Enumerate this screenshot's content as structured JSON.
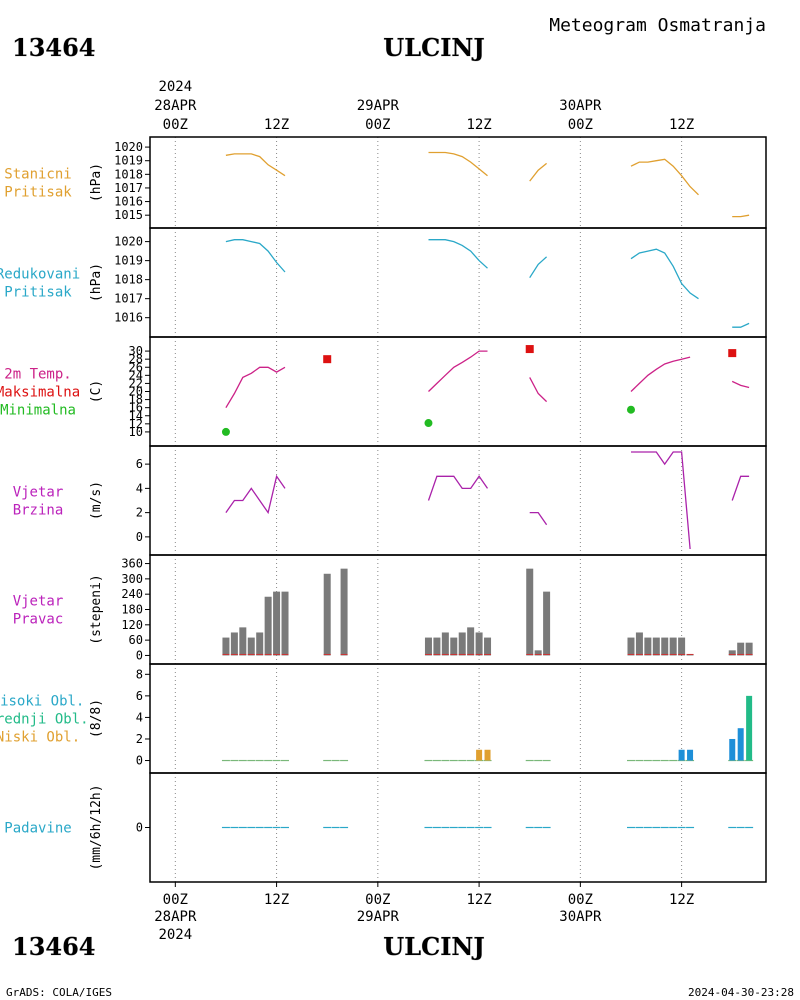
{
  "header": {
    "station_id": "13464",
    "station_name": "ULCINJ",
    "subtitle": "Meteogram Osmatranja",
    "year": "2024"
  },
  "footer": {
    "station_id": "13464",
    "station_name": "ULCINJ",
    "credit": "GrADS: COLA/IGES",
    "timestamp": "2024-04-30-23:28"
  },
  "time_axis": {
    "hour_labels": [
      "00Z",
      "12Z",
      "00Z",
      "12Z",
      "00Z",
      "12Z"
    ],
    "hours": [
      0,
      12,
      24,
      36,
      48,
      60
    ],
    "date_labels": [
      "28APR",
      "29APR",
      "30APR"
    ],
    "date_hours": [
      0,
      24,
      48
    ],
    "year_label": "2024",
    "range_hours": [
      -3,
      70
    ]
  },
  "chart_data": [
    {
      "type": "line",
      "id": "stanicni",
      "panel_labels": [
        "Stanicni",
        "Pritisak"
      ],
      "label_colors": [
        "#e0a030",
        "#e0a030"
      ],
      "ylabel": "(hPa)",
      "ylim": [
        1014.5,
        1020.3
      ],
      "yticks": [
        1015,
        1016,
        1017,
        1018,
        1019,
        1020
      ],
      "series": [
        {
          "color": "#e0a030",
          "segments": [
            [
              [
                6,
                1019.4
              ],
              [
                7,
                1019.5
              ],
              [
                8,
                1019.5
              ],
              [
                9,
                1019.5
              ],
              [
                10,
                1019.3
              ],
              [
                11,
                1018.7
              ],
              [
                12,
                1018.3
              ],
              [
                13,
                1017.9
              ]
            ],
            [
              [
                30,
                1019.6
              ],
              [
                31,
                1019.6
              ],
              [
                32,
                1019.6
              ],
              [
                33,
                1019.5
              ],
              [
                34,
                1019.3
              ],
              [
                35,
                1018.9
              ],
              [
                36,
                1018.4
              ],
              [
                37,
                1017.9
              ]
            ],
            [
              [
                42,
                1017.5
              ],
              [
                43,
                1018.3
              ],
              [
                44,
                1018.8
              ]
            ],
            [
              [
                54,
                1018.6
              ],
              [
                55,
                1018.9
              ],
              [
                56,
                1018.9
              ],
              [
                57,
                1019.0
              ],
              [
                58,
                1019.1
              ],
              [
                59,
                1018.6
              ],
              [
                60,
                1017.9
              ],
              [
                61,
                1017.1
              ],
              [
                62,
                1016.5
              ]
            ],
            [
              [
                66,
                1014.9
              ],
              [
                67,
                1014.9
              ],
              [
                68,
                1015.0
              ]
            ]
          ]
        }
      ]
    },
    {
      "type": "line",
      "id": "redukovani",
      "panel_labels": [
        "Redukovani",
        "Pritisak"
      ],
      "label_colors": [
        "#2aa8c8",
        "#2aa8c8"
      ],
      "ylabel": "(hPa)",
      "ylim": [
        1015.3,
        1020.4
      ],
      "yticks": [
        1016,
        1017,
        1018,
        1019,
        1020
      ],
      "series": [
        {
          "color": "#2aa8c8",
          "segments": [
            [
              [
                6,
                1020.0
              ],
              [
                7,
                1020.1
              ],
              [
                8,
                1020.1
              ],
              [
                9,
                1020.0
              ],
              [
                10,
                1019.9
              ],
              [
                11,
                1019.5
              ],
              [
                12,
                1018.9
              ],
              [
                13,
                1018.4
              ]
            ],
            [
              [
                30,
                1020.1
              ],
              [
                31,
                1020.1
              ],
              [
                32,
                1020.1
              ],
              [
                33,
                1020.0
              ],
              [
                34,
                1019.8
              ],
              [
                35,
                1019.5
              ],
              [
                36,
                1019.0
              ],
              [
                37,
                1018.6
              ]
            ],
            [
              [
                42,
                1018.1
              ],
              [
                43,
                1018.8
              ],
              [
                44,
                1019.2
              ]
            ],
            [
              [
                54,
                1019.1
              ],
              [
                55,
                1019.4
              ],
              [
                56,
                1019.5
              ],
              [
                57,
                1019.6
              ],
              [
                58,
                1019.4
              ],
              [
                59,
                1018.7
              ],
              [
                60,
                1017.8
              ],
              [
                61,
                1017.3
              ],
              [
                62,
                1017.0
              ]
            ],
            [
              [
                66,
                1015.5
              ],
              [
                67,
                1015.5
              ],
              [
                68,
                1015.7
              ]
            ]
          ]
        }
      ]
    },
    {
      "type": "line",
      "id": "temperatura",
      "panel_labels": [
        "2m Temp.",
        "Maksimalna",
        "Minimalna"
      ],
      "label_colors": [
        "#cc2288",
        "#dd1111",
        "#22bb22"
      ],
      "ylabel": "(C)",
      "ylim": [
        8,
        32
      ],
      "yticks": [
        10,
        12,
        14,
        16,
        18,
        20,
        22,
        24,
        26,
        28,
        30
      ],
      "series": [
        {
          "name": "2m Temp.",
          "color": "#cc2288",
          "segments": [
            [
              [
                6,
                16.0
              ],
              [
                7,
                19.5
              ],
              [
                8,
                23.5
              ],
              [
                9,
                24.5
              ],
              [
                10,
                26.0
              ],
              [
                11,
                26.0
              ],
              [
                12,
                24.8
              ],
              [
                13,
                26.0
              ]
            ],
            [
              [
                30,
                20.0
              ],
              [
                31,
                22.0
              ],
              [
                32,
                24.0
              ],
              [
                33,
                26.0
              ],
              [
                34,
                27.2
              ],
              [
                35,
                28.5
              ],
              [
                36,
                30.0
              ],
              [
                37,
                30.0
              ]
            ],
            [
              [
                42,
                23.5
              ],
              [
                43,
                19.5
              ],
              [
                44,
                17.5
              ]
            ],
            [
              [
                54,
                20.0
              ],
              [
                55,
                22.0
              ],
              [
                56,
                24.0
              ],
              [
                57,
                25.5
              ],
              [
                58,
                26.8
              ],
              [
                59,
                27.5
              ],
              [
                60,
                28.0
              ],
              [
                61,
                28.5
              ]
            ],
            [
              [
                66,
                22.5
              ],
              [
                67,
                21.5
              ],
              [
                68,
                21.0
              ]
            ]
          ]
        },
        {
          "name": "Maksimalna",
          "color": "#dd1111",
          "marker": "square",
          "points": [
            [
              18,
              28.0
            ],
            [
              42,
              30.5
            ],
            [
              66,
              29.5
            ]
          ]
        },
        {
          "name": "Minimalna",
          "color": "#22bb22",
          "marker": "circle",
          "points": [
            [
              6,
              10.0
            ],
            [
              30,
              12.2
            ],
            [
              54,
              15.5
            ]
          ]
        }
      ]
    },
    {
      "type": "line",
      "id": "vjetar_brzina",
      "panel_labels": [
        "Vjetar",
        "Brzina"
      ],
      "label_colors": [
        "#bb22bb",
        "#bb22bb"
      ],
      "ylabel": "(m/s)",
      "ylim": [
        -1,
        7
      ],
      "yticks": [
        0,
        2,
        4,
        6
      ],
      "series": [
        {
          "color": "#aa22aa",
          "segments": [
            [
              [
                6,
                2
              ],
              [
                7,
                3
              ],
              [
                8,
                3
              ],
              [
                9,
                4
              ],
              [
                10,
                3
              ],
              [
                11,
                2
              ],
              [
                12,
                5
              ],
              [
                13,
                4
              ]
            ],
            [
              [
                30,
                3
              ],
              [
                31,
                5
              ],
              [
                32,
                5
              ],
              [
                33,
                5
              ],
              [
                34,
                4
              ],
              [
                35,
                4
              ],
              [
                36,
                5
              ],
              [
                37,
                4
              ]
            ],
            [
              [
                42,
                2
              ],
              [
                43,
                2
              ],
              [
                44,
                1
              ]
            ],
            [
              [
                54,
                7
              ],
              [
                55,
                7
              ],
              [
                56,
                7
              ],
              [
                57,
                7
              ],
              [
                58,
                6
              ],
              [
                59,
                7
              ],
              [
                60,
                7
              ],
              [
                61,
                -1
              ]
            ],
            [
              [
                66,
                3
              ],
              [
                67,
                5
              ],
              [
                68,
                5
              ]
            ]
          ]
        }
      ]
    },
    {
      "type": "bar",
      "id": "vjetar_pravac",
      "panel_labels": [
        "Vjetar",
        "Pravac"
      ],
      "label_colors": [
        "#bb22bb",
        "#bb22bb"
      ],
      "ylabel": "(stepeni)",
      "ylim": [
        -10,
        370
      ],
      "yticks": [
        0,
        60,
        120,
        180,
        240,
        300,
        360
      ],
      "bar_color": "#7a7a7a",
      "base_color": "#cc3333",
      "bars": [
        [
          6,
          70
        ],
        [
          7,
          90
        ],
        [
          8,
          110
        ],
        [
          9,
          70
        ],
        [
          10,
          90
        ],
        [
          11,
          230
        ],
        [
          12,
          250
        ],
        [
          13,
          250
        ],
        [
          18,
          320
        ],
        [
          20,
          340
        ],
        [
          30,
          70
        ],
        [
          31,
          70
        ],
        [
          32,
          90
        ],
        [
          33,
          70
        ],
        [
          34,
          90
        ],
        [
          35,
          110
        ],
        [
          36,
          90
        ],
        [
          37,
          70
        ],
        [
          42,
          340
        ],
        [
          43,
          20
        ],
        [
          44,
          250
        ],
        [
          54,
          70
        ],
        [
          55,
          90
        ],
        [
          56,
          70
        ],
        [
          57,
          70
        ],
        [
          58,
          70
        ],
        [
          59,
          70
        ],
        [
          60,
          70
        ],
        [
          61,
          5
        ],
        [
          66,
          20
        ],
        [
          67,
          50
        ],
        [
          68,
          50
        ]
      ]
    },
    {
      "type": "bar",
      "id": "oblaci",
      "panel_labels": [
        "Visoki Obl.",
        "Srednji Obl.",
        "Niski Obl."
      ],
      "label_colors": [
        "#2aa8c8",
        "#22bb88",
        "#e0a030"
      ],
      "ylabel": "(8/8)",
      "ylim": [
        -0.6,
        8.4
      ],
      "yticks": [
        0,
        2,
        4,
        6,
        8
      ],
      "series": [
        {
          "name": "Visoki Obl.",
          "color": "#1e8fd8",
          "bars": [
            [
              60,
              1
            ],
            [
              61,
              1
            ],
            [
              66,
              2
            ],
            [
              67,
              3
            ]
          ]
        },
        {
          "name": "Srednji Obl.",
          "color": "#22bb88",
          "bars": [
            [
              68,
              6
            ]
          ]
        },
        {
          "name": "Niski Obl.",
          "color": "#e0a030",
          "bars": [
            [
              36,
              1
            ],
            [
              37,
              1
            ]
          ]
        }
      ],
      "zero_hours": [
        6,
        7,
        8,
        9,
        10,
        11,
        12,
        13,
        18,
        19,
        20,
        30,
        31,
        32,
        33,
        34,
        35,
        36,
        37,
        42,
        43,
        44,
        54,
        55,
        56,
        57,
        58,
        59,
        60,
        61,
        66,
        67,
        68
      ]
    },
    {
      "type": "bar",
      "id": "padavine",
      "panel_labels": [
        "Padavine"
      ],
      "label_colors": [
        "#2aa8c8"
      ],
      "ylabel": "(mm/6h/12h)",
      "ylim": [
        -5,
        5
      ],
      "yticks": [
        0
      ],
      "zero_hours": [
        6,
        7,
        8,
        9,
        10,
        11,
        12,
        13,
        18,
        19,
        20,
        30,
        31,
        32,
        33,
        34,
        35,
        36,
        37,
        42,
        43,
        44,
        54,
        55,
        56,
        57,
        58,
        59,
        60,
        61,
        66,
        67,
        68
      ]
    }
  ]
}
